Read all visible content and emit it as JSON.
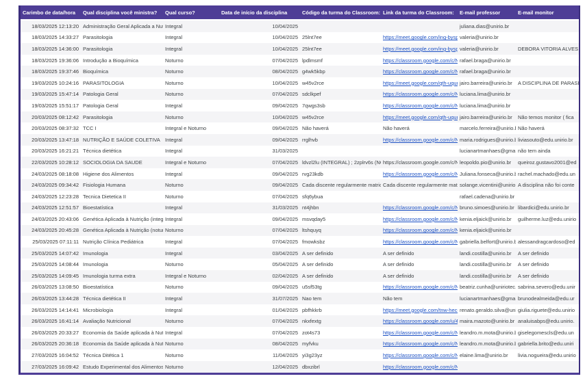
{
  "colors": {
    "header_bg": "#4e3d96",
    "table_border": "#3b2d7d",
    "link": "#1a4fc4",
    "row_alt": "#f4f4f6",
    "text": "#3c4043"
  },
  "table": {
    "columns": [
      {
        "label": "Carimbo de data/hora"
      },
      {
        "label": "Qual disciplina você ministra?"
      },
      {
        "label": "Qual curso?"
      },
      {
        "label": "Data de início da disciplina"
      },
      {
        "label": "Código da turma do Classroom:"
      },
      {
        "label": "Link da turma do Classroom:"
      },
      {
        "label": "E-mail professor"
      },
      {
        "label": "E-mail monitor"
      }
    ],
    "rows": [
      {
        "timestamp": "18/03/2025 12:13:20",
        "discipline": "Administração Geral Aplicada a Nutr",
        "course": "Integral",
        "start_date": "10/04/2025",
        "code": "",
        "link": "",
        "link_is_url": false,
        "professor": "juliana.dias@unirio.br",
        "monitor": ""
      },
      {
        "timestamp": "18/03/2025 14:33:27",
        "discipline": "Parasitologia",
        "course": "Integral",
        "start_date": "10/04/2025",
        "code": "25lnt7ee",
        "link": "https://meet.google.com/ing-bysp-",
        "link_is_url": true,
        "professor": "valeria@unirio.br",
        "monitor": ""
      },
      {
        "timestamp": "18/03/2025 14:36:00",
        "discipline": "Parasitologia",
        "course": "Integral",
        "start_date": "10/04/2025",
        "code": "25lnt7ee",
        "link": "https://meet.google.com/ing-bysp-",
        "link_is_url": true,
        "professor": "valeria@unirio.br",
        "monitor": "DEBORA VITORIA ALVES"
      },
      {
        "timestamp": "18/03/2025 19:36:06",
        "discipline": "Introdução a Bioquímica",
        "course": "Noturno",
        "start_date": "07/04/2025",
        "code": "lpdlmsmf",
        "link": "https://classroom.google.com/c/N",
        "link_is_url": true,
        "professor": "rafael.braga@unirio.br",
        "monitor": ""
      },
      {
        "timestamp": "18/03/2025 19:37:46",
        "discipline": "Bioquímica",
        "course": "Noturno",
        "start_date": "08/04/2025",
        "code": "g4wk5kbp",
        "link": "https://classroom.google.com/c/N",
        "link_is_url": true,
        "professor": "rafael.braga@unirio.br",
        "monitor": ""
      },
      {
        "timestamp": "19/03/2025 10:24:16",
        "discipline": "PARASITOLOGIA",
        "course": "Noturno",
        "start_date": "10/04/2025",
        "code": "w45v2rce",
        "link": "https://meet.google.com/qth-uqun",
        "link_is_url": true,
        "professor": "jairo.barreira@unirio.br",
        "monitor": "A DISCIPLINA DE PARASI"
      },
      {
        "timestamp": "19/03/2025 15:47:14",
        "discipline": "Patologia Geral",
        "course": "Noturno",
        "start_date": "07/04/2025",
        "code": "sdclkpef",
        "link": "https://classroom.google.com/c/N",
        "link_is_url": true,
        "professor": "luciana.lima@unirio.br",
        "monitor": ""
      },
      {
        "timestamp": "19/03/2025 15:51:17",
        "discipline": "Patologia Geral",
        "course": "Integral",
        "start_date": "09/04/2025",
        "code": "7qwgs3sb",
        "link": "https://classroom.google.com/c/N",
        "link_is_url": true,
        "professor": "luciana.lima@unirio.br",
        "monitor": ""
      },
      {
        "timestamp": "20/03/2025 08:12:42",
        "discipline": "Parasitologia",
        "course": "Noturno",
        "start_date": "10/04/2025",
        "code": "w45v2rce",
        "link": "https://meet.google.com/qth-uqun",
        "link_is_url": true,
        "professor": "jairo.barreira@unirio.br",
        "monitor": "Não temos monitor ( fica"
      },
      {
        "timestamp": "20/03/2025 08:37:32",
        "discipline": "TCC I",
        "course": "Integral e Noturno",
        "start_date": "09/04/2025",
        "code": "Não haverá",
        "link": "Não haverá",
        "link_is_url": false,
        "professor": "marcelo.ferreira@unirio.b",
        "monitor": "Não haverá"
      },
      {
        "timestamp": "20/03/2025 13:47:18",
        "discipline": "NUTRIÇÃO E SAÚDE COLETIVA",
        "course": "Integral",
        "start_date": "09/04/2025",
        "code": "rrglhvb",
        "link": "https://classroom.google.com/c/N",
        "link_is_url": true,
        "professor": "maria.rodrigues@unirio.b",
        "monitor": "liviasouto@edu.unirio.br"
      },
      {
        "timestamp": "20/03/2025 16:21:21",
        "discipline": "Técnica dietética",
        "course": "Integral",
        "start_date": "31/03/2025",
        "code": "",
        "link": "",
        "link_is_url": false,
        "professor": "lucianartmanhaes@gma",
        "monitor": "não tem ainda"
      },
      {
        "timestamp": "22/03/2025 10:28:12",
        "discipline": "SOCIOLOGIA DA SAUDE",
        "course": "Integral e Noturno",
        "start_date": "07/04/2025",
        "code": "ldvzl2lu (INTEGRAL) ; 2zplrv6s (NOTUI",
        "link": "https://classroom.google.com/c/N",
        "link_is_url": false,
        "professor": "leopoldo.pio@unirio.br",
        "monitor": "queiroz.gustavo2001@ed"
      },
      {
        "timestamp": "24/03/2025 08:18:08",
        "discipline": "Higiene dos Alimentos",
        "course": "Integral",
        "start_date": "09/04/2025",
        "code": "rvg23kdb",
        "link": "https://classroom.google.com/c/N",
        "link_is_url": true,
        "professor": "Juliana.fonseca@unirio.b",
        "monitor": "rachel.machado@edu.un"
      },
      {
        "timestamp": "24/03/2025 09:34:42",
        "discipline": "Fisiologia Humana",
        "course": "Noturno",
        "start_date": "09/04/2025",
        "code": "Cada discente regularmente matricula",
        "link": "Cada discente regularmente matric",
        "link_is_url": false,
        "professor": "solange.vicentini@unirio",
        "monitor": "A disciplina não foi conte"
      },
      {
        "timestamp": "24/03/2025 12:23:28",
        "discipline": "Tecnica Dietetica II",
        "course": "Noturno",
        "start_date": "07/04/2025",
        "code": "sfq6ybua",
        "link": "",
        "link_is_url": false,
        "professor": "rafael.cadena@unirio.br",
        "monitor": ""
      },
      {
        "timestamp": "24/03/2025 12:51:57",
        "discipline": "Bioestatística",
        "course": "Integral",
        "start_date": "31/03/2025",
        "code": "nt4jhbn",
        "link": "https://classroom.google.com/c/N",
        "link_is_url": true,
        "professor": "bruno.simoes@unirio.br",
        "monitor": "libardici@edu.unirio.br"
      },
      {
        "timestamp": "24/03/2025 20:43:06",
        "discipline": "Genética Aplicada à Nutrição (integr",
        "course": "Integral",
        "start_date": "09/04/2025",
        "code": "msvqday5",
        "link": "https://classroom.google.com/c/N",
        "link_is_url": true,
        "professor": "kenia.eljaick@unirio.br",
        "monitor": "guilherme.luz@edu.unirio"
      },
      {
        "timestamp": "24/03/2025 20:45:28",
        "discipline": "Genética Aplicada à Nutrição (notur",
        "course": "Noturno",
        "start_date": "07/04/2025",
        "code": "ltshquyq",
        "link": "https://classroom.google.com/c/N",
        "link_is_url": true,
        "professor": "kenia.eljaick@unirio.br",
        "monitor": ""
      },
      {
        "timestamp": "25/03/2025 07:11:11",
        "discipline": "Nutrição Clínica Pediátrica",
        "course": "Integral",
        "start_date": "07/04/2025",
        "code": "fmowksbz",
        "link": "https://classroom.google.com/c/N",
        "link_is_url": true,
        "professor": "gabriella.belfort@unirio.b",
        "monitor": "alessandragcardoso@ed"
      },
      {
        "timestamp": "25/03/2025 14:07:42",
        "discipline": "Imunologia",
        "course": "Integral",
        "start_date": "03/04/2025",
        "code": "A ser definido",
        "link": "A ser definido",
        "link_is_url": false,
        "professor": "landi.costilla@unirio.br",
        "monitor": "A ser definido"
      },
      {
        "timestamp": "25/03/2025 14:08:44",
        "discipline": "Imunologia",
        "course": "Noturno",
        "start_date": "05/04/2025",
        "code": "A ser definido",
        "link": "A ser definido",
        "link_is_url": false,
        "professor": "landi.costilla@unirio.br",
        "monitor": "A ser definido"
      },
      {
        "timestamp": "25/03/2025 14:09:45",
        "discipline": "Imunologia  turma extra",
        "course": "Integral e Noturno",
        "start_date": "02/04/2025",
        "code": "A ser definido",
        "link": "A ser definido",
        "link_is_url": false,
        "professor": "landi.costilla@unirio.br",
        "monitor": "A ser definido"
      },
      {
        "timestamp": "26/03/2025 13:08:50",
        "discipline": "Bioestatística",
        "course": "Noturno",
        "start_date": "09/04/2025",
        "code": "u5sf53tg",
        "link": "https://classroom.google.com/c/N",
        "link_is_url": true,
        "professor": "beatriz.cunha@uniriotec.",
        "monitor": "sabrina.severo@edu.unir"
      },
      {
        "timestamp": "26/03/2025 13:44:28",
        "discipline": "Técnica dietética II",
        "course": "Integral",
        "start_date": "31/07/2025",
        "code": "Nao tem",
        "link": "Não tem",
        "link_is_url": false,
        "professor": "lucianartmanhaes@gma",
        "monitor": "brunodealmeida@edu.ur"
      },
      {
        "timestamp": "26/03/2025 14:14:41",
        "discipline": "Microbiologia",
        "course": "Integral",
        "start_date": "01/04/2025",
        "code": "pbfhkkrb",
        "link": "https://meet.google.com/tnw-hecn",
        "link_is_url": true,
        "professor": "renato.geraldo.silva@uni",
        "monitor": "giulia.riguete@edu.unirio"
      },
      {
        "timestamp": "26/03/2025 16:41:14",
        "discipline": "Avaliação Nutricional",
        "course": "Noturno",
        "start_date": "07/04/2025",
        "code": "nkxfextg",
        "link": "https://classroom.google.com/u/4",
        "link_is_url": true,
        "professor": "maira.mazoto@unirio.br",
        "monitor": "analuisabps@edu.unirio."
      },
      {
        "timestamp": "26/03/2025 20:33:27",
        "discipline": "Economia da Saúde aplicada à Nutri",
        "course": "Integral",
        "start_date": "07/04/2025",
        "code": "zot4s73",
        "link": "https://classroom.google.com/c/N",
        "link_is_url": true,
        "professor": "leandro.m.mota@unirio.b",
        "monitor": "giselegomescls@edu.un"
      },
      {
        "timestamp": "26/03/2025 20:36:18",
        "discipline": "Economia da Saúde aplicada à Nutri",
        "course": "Noturno",
        "start_date": "08/04/2025",
        "code": "myfvku",
        "link": "https://classroom.google.com/c/N",
        "link_is_url": true,
        "professor": "leandro.m.mota@unirio.b",
        "monitor": "gabriella.brito@edu.uniri"
      },
      {
        "timestamp": "27/03/2025 16:04:52",
        "discipline": "Técnica Ditética 1",
        "course": "Noturno",
        "start_date": "11/04/2025",
        "code": "yi3g23yz",
        "link": "https://classroom.google.com/c/N",
        "link_is_url": true,
        "professor": "elaine.lima@unirio.br",
        "monitor": "livia.nogueira@edu.unirio"
      },
      {
        "timestamp": "27/03/2025 16:09:42",
        "discipline": "Estudo Experimental dos Alimentos",
        "course": "Noturno",
        "start_date": "12/04/2025",
        "code": "dbxzibrl",
        "link": "https://classroom.google.com/c/N",
        "link_is_url": true,
        "professor": "",
        "monitor": ""
      }
    ]
  }
}
